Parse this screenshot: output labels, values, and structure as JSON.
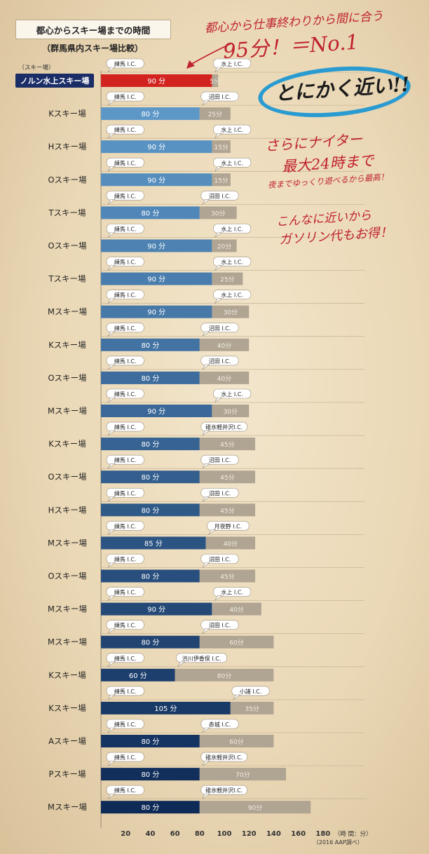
{
  "title": "都心からスキー場までの時間",
  "subtitle": "（群馬県内スキー場比較）",
  "annotations": {
    "line1": "都心から仕事終わりから間に合う",
    "line2": "95分！＝No.1",
    "line3": "とにかく近い!!",
    "line4": "さらにナイター",
    "line5": "最大24時まで",
    "line6": "夜までゆっくり遊べるから最高！",
    "line7": "こんなに近いから",
    "line8": "ガソリン代もお得！"
  },
  "colors": {
    "highlight": "#d2231f",
    "leg2": "#b0a492",
    "callout_bg": "#ffffff",
    "nav": "#1a2d66"
  },
  "chart_data": {
    "type": "bar",
    "stacked": true,
    "orientation": "horizontal",
    "category_header": "（スキー場）",
    "x_unit_label": "（時 間：分）",
    "source": "（2016 AAP調べ）",
    "xlim": [
      0,
      180
    ],
    "x_ticks": [
      20,
      40,
      60,
      80,
      100,
      120,
      140,
      160,
      180
    ],
    "unit_suffix": " 分",
    "rows": [
      {
        "name": "ノルン水上スキー場",
        "leg1": 90,
        "leg2": 5,
        "ic1": "練馬 I.C.",
        "ic2": "水上 I.C.",
        "label2": "5分",
        "highlight": true
      },
      {
        "name": "Kスキー場",
        "leg1": 80,
        "leg2": 25,
        "ic1": "練馬 I.C.",
        "ic2": "沼田 I.C.",
        "label2": "25分"
      },
      {
        "name": "Hスキー場",
        "leg1": 90,
        "leg2": 15,
        "ic1": "練馬 I.C.",
        "ic2": "水上 I.C.",
        "label2": "15分"
      },
      {
        "name": "Oスキー場",
        "leg1": 90,
        "leg2": 15,
        "ic1": "練馬 I.C.",
        "ic2": "水上 I.C.",
        "label2": "15分"
      },
      {
        "name": "Tスキー場",
        "leg1": 80,
        "leg2": 30,
        "ic1": "練馬 I.C.",
        "ic2": "沼田 I.C.",
        "label2": "30分"
      },
      {
        "name": "Oスキー場",
        "leg1": 90,
        "leg2": 20,
        "ic1": "練馬 I.C.",
        "ic2": "水上 I.C.",
        "label2": "20分"
      },
      {
        "name": "Tスキー場",
        "leg1": 90,
        "leg2": 25,
        "ic1": "練馬 I.C.",
        "ic2": "水上 I.C.",
        "label2": "25分"
      },
      {
        "name": "Mスキー場",
        "leg1": 90,
        "leg2": 30,
        "ic1": "練馬 I.C.",
        "ic2": "水上 I.C.",
        "label2": "30分"
      },
      {
        "name": "Kスキー場",
        "leg1": 80,
        "leg2": 40,
        "ic1": "練馬 I.C.",
        "ic2": "沼田 I.C.",
        "label2": "40分"
      },
      {
        "name": "Oスキー場",
        "leg1": 80,
        "leg2": 40,
        "ic1": "練馬 I.C.",
        "ic2": "沼田 I.C.",
        "label2": "40分"
      },
      {
        "name": "Mスキー場",
        "leg1": 90,
        "leg2": 30,
        "ic1": "練馬 I.C.",
        "ic2": "水上 I.C.",
        "label2": "30分"
      },
      {
        "name": "Kスキー場",
        "leg1": 80,
        "leg2": 45,
        "ic1": "練馬 I.C.",
        "ic2": "碓氷軽井沢I.C.",
        "label2": "45分"
      },
      {
        "name": "Oスキー場",
        "leg1": 80,
        "leg2": 45,
        "ic1": "練馬 I.C.",
        "ic2": "沼田 I.C.",
        "label2": "45分"
      },
      {
        "name": "Hスキー場",
        "leg1": 80,
        "leg2": 45,
        "ic1": "練馬 I.C.",
        "ic2": "沼田 I.C.",
        "label2": "45分"
      },
      {
        "name": "Mスキー場",
        "leg1": 85,
        "leg2": 40,
        "ic1": "練馬 I.C.",
        "ic2": "月夜野 I.C.",
        "label2": "40分"
      },
      {
        "name": "Oスキー場",
        "leg1": 80,
        "leg2": 45,
        "ic1": "練馬 I.C.",
        "ic2": "沼田 I.C.",
        "label2": "45分"
      },
      {
        "name": "Mスキー場",
        "leg1": 90,
        "leg2": 40,
        "ic1": "練馬 I.C.",
        "ic2": "水上 I.C.",
        "label2": "40分"
      },
      {
        "name": "Mスキー場",
        "leg1": 80,
        "leg2": 60,
        "ic1": "練馬 I.C.",
        "ic2": "沼田 I.C.",
        "label2": "60分"
      },
      {
        "name": "Kスキー場",
        "leg1": 60,
        "leg2": 80,
        "ic1": "練馬 I.C.",
        "ic2": "渋川伊香保 I.C.",
        "label2": "80分"
      },
      {
        "name": "Kスキー場",
        "leg1": 105,
        "leg2": 35,
        "ic1": "練馬 I.C.",
        "ic2": "小諸 I.C.",
        "label2": "35分"
      },
      {
        "name": "Aスキー場",
        "leg1": 80,
        "leg2": 60,
        "ic1": "練馬 I.C.",
        "ic2": "赤城 I.C.",
        "label2": "60分"
      },
      {
        "name": "Pスキー場",
        "leg1": 80,
        "leg2": 70,
        "ic1": "練馬 I.C.",
        "ic2": "碓氷軽井沢I.C.",
        "label2": "70分"
      },
      {
        "name": "Mスキー場",
        "leg1": 80,
        "leg2": 90,
        "ic1": "練馬 I.C.",
        "ic2": "碓氷軽井沢I.C.",
        "label2": "90分"
      }
    ]
  }
}
